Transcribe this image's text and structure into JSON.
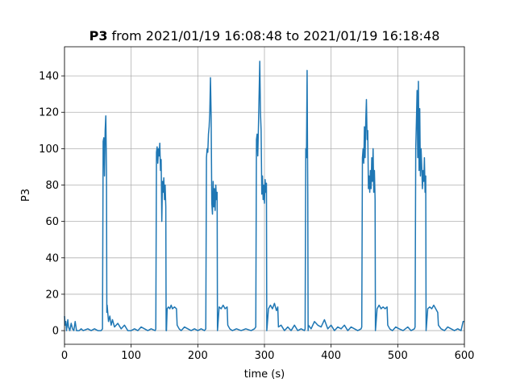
{
  "chart_data": {
    "type": "line",
    "title_parts": [
      "P3",
      "from 2021/01/19 16:08:48 to 2021/01/19 16:18:48"
    ],
    "x_label": "time (s)",
    "y_label": "P3",
    "xlim": [
      0,
      600
    ],
    "xticks": [
      0,
      100,
      200,
      300,
      400,
      500,
      600
    ],
    "ylim": [
      -7.5,
      156
    ],
    "yticks": [
      0,
      20,
      40,
      60,
      80,
      100,
      120,
      140
    ],
    "grid": true,
    "x": [
      0,
      1,
      2,
      3,
      5,
      6,
      8,
      10,
      12,
      14,
      16,
      18,
      22,
      25,
      28,
      35,
      40,
      45,
      50,
      55,
      57,
      58,
      59,
      60,
      61,
      62,
      63,
      63.5,
      64,
      66,
      68,
      70,
      72,
      75,
      80,
      85,
      90,
      95,
      100,
      105,
      110,
      115,
      120,
      125,
      130,
      136,
      137,
      138,
      139,
      140,
      141,
      142,
      143,
      144,
      145,
      146,
      147,
      148,
      149,
      150,
      151,
      152,
      152.5,
      153,
      154,
      156,
      158,
      160,
      162,
      165,
      168,
      169,
      172,
      175,
      180,
      185,
      190,
      195,
      200,
      205,
      210,
      212,
      213,
      214,
      215,
      216,
      217,
      218,
      219,
      220,
      221,
      222,
      223,
      224,
      225,
      226,
      227,
      228,
      229,
      229.5,
      230,
      232,
      235,
      238,
      241,
      244,
      245,
      248,
      252,
      258,
      265,
      272,
      280,
      285,
      287,
      288,
      289,
      290,
      291,
      292,
      293,
      294,
      295,
      296,
      297,
      298,
      299,
      300,
      301,
      302,
      303,
      303.5,
      304,
      306,
      309,
      312,
      315,
      318,
      320,
      321,
      325,
      330,
      335,
      340,
      345,
      350,
      355,
      360,
      361,
      362,
      363,
      364,
      365,
      365.5,
      366,
      370,
      375,
      380,
      385,
      390,
      395,
      400,
      405,
      410,
      415,
      420,
      425,
      430,
      435,
      440,
      445,
      446,
      447,
      448,
      449,
      450,
      451,
      452,
      453,
      454,
      455,
      456,
      457,
      458,
      459,
      460,
      461,
      462,
      463,
      464,
      465,
      466,
      466.5,
      467,
      469,
      472,
      475,
      478,
      481,
      484,
      485,
      488,
      492,
      497,
      502,
      508,
      515,
      520,
      525,
      526,
      527,
      528,
      529,
      530,
      531,
      532,
      533,
      534,
      535,
      536,
      537,
      538,
      539,
      540,
      541,
      542,
      542.5,
      543,
      545,
      548,
      551,
      554,
      557,
      560,
      561,
      565,
      570,
      575,
      580,
      585,
      590,
      595,
      598,
      600
    ],
    "series": [
      {
        "name": "P3",
        "color": "#1f77b4",
        "values": [
          8,
          3,
          5,
          0,
          6,
          2,
          0,
          4,
          1,
          0,
          5,
          0,
          0,
          1,
          0,
          1,
          0,
          1,
          0,
          0,
          1,
          104,
          106,
          85,
          110,
          118,
          88,
          10,
          14,
          5,
          8,
          3,
          6,
          2,
          4,
          1,
          3,
          0,
          0,
          1,
          0,
          2,
          1,
          0,
          1,
          0,
          1,
          98,
          101,
          92,
          100,
          96,
          103,
          88,
          94,
          60,
          82,
          76,
          84,
          72,
          80,
          68,
          0,
          0,
          12,
          13,
          12,
          14,
          12,
          13,
          12,
          3,
          1,
          0,
          2,
          1,
          0,
          1,
          0,
          1,
          0,
          1,
          95,
          100,
          98,
          108,
          112,
          120,
          139,
          118,
          70,
          64,
          82,
          68,
          78,
          66,
          80,
          72,
          76,
          0,
          2,
          13,
          12,
          14,
          12,
          13,
          3,
          1,
          0,
          1,
          0,
          1,
          0,
          1,
          2,
          105,
          108,
          96,
          112,
          130,
          148,
          120,
          110,
          75,
          85,
          72,
          80,
          70,
          83,
          76,
          81,
          0,
          2,
          12,
          14,
          12,
          15,
          11,
          13,
          2,
          3,
          0,
          2,
          0,
          3,
          0,
          1,
          0,
          1,
          100,
          95,
          143,
          75,
          0,
          3,
          1,
          5,
          3,
          2,
          6,
          1,
          3,
          0,
          2,
          1,
          3,
          0,
          2,
          1,
          0,
          1,
          2,
          95,
          100,
          92,
          112,
          95,
          115,
          127,
          105,
          110,
          78,
          85,
          76,
          88,
          78,
          95,
          82,
          100,
          76,
          88,
          72,
          0,
          2,
          12,
          14,
          12,
          13,
          12,
          13,
          3,
          1,
          0,
          2,
          1,
          0,
          2,
          0,
          1,
          2,
          100,
          115,
          132,
          95,
          137,
          88,
          122,
          85,
          100,
          90,
          78,
          88,
          82,
          95,
          76,
          85,
          0,
          2,
          12,
          13,
          12,
          14,
          12,
          10,
          3,
          1,
          0,
          2,
          1,
          0,
          1,
          0,
          5,
          5
        ]
      }
    ]
  }
}
